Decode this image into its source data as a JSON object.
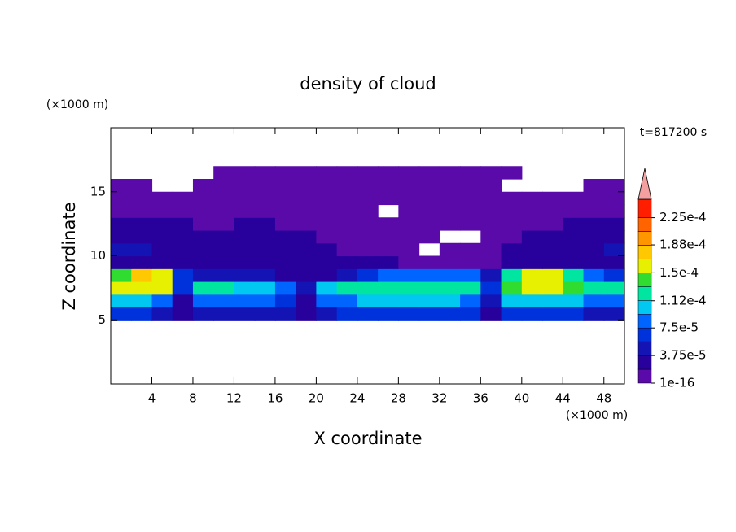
{
  "chart_data": {
    "type": "contour",
    "title": "density of cloud",
    "x_label": "X coordinate",
    "y_label": "Z coordinate",
    "x_unit": "(×1000 m)",
    "y_unit": "(×1000 m)",
    "annotation": "t=817200 s",
    "xlim": [
      0,
      50
    ],
    "ylim": [
      0,
      20
    ],
    "xticks": [
      4,
      8,
      12,
      16,
      20,
      24,
      28,
      32,
      36,
      40,
      44,
      48
    ],
    "yticks": [
      5,
      10,
      15
    ],
    "colorbar": {
      "clim": [
        1e-16,
        0.00025
      ],
      "levels": [
        1e-16,
        1.875e-05,
        3.75e-05,
        5.625e-05,
        7.5e-05,
        9.375e-05,
        0.0001125,
        0.00013125,
        0.00015,
        0.00016875,
        0.0001875,
        0.00020625,
        0.000225
      ],
      "colors": [
        "#5a0aa8",
        "#28009c",
        "#1414b4",
        "#0032dc",
        "#0064ff",
        "#00c8f0",
        "#00e6a0",
        "#30dc30",
        "#e6f000",
        "#ffc800",
        "#ff9600",
        "#ff6400",
        "#ff1e00"
      ],
      "over_color": "#f4a0a0",
      "ticks": [
        {
          "value": 1e-16,
          "label": "1e-16"
        },
        {
          "value": 3.75e-05,
          "label": "3.75e-5"
        },
        {
          "value": 7.5e-05,
          "label": "7.5e-5"
        },
        {
          "value": 0.000112,
          "label": "1.12e-4"
        },
        {
          "value": 0.00015,
          "label": "1.5e-4"
        },
        {
          "value": 0.000188,
          "label": "1.88e-4"
        },
        {
          "value": 0.000225,
          "label": "2.25e-4"
        }
      ]
    },
    "field": {
      "x": [
        1,
        3,
        5,
        7,
        9,
        11,
        13,
        15,
        17,
        19,
        21,
        23,
        25,
        27,
        29,
        31,
        33,
        35,
        37,
        39,
        41,
        43,
        45,
        47,
        49
      ],
      "z": [
        5.5,
        6.5,
        7.5,
        8.5,
        9.5,
        10.5,
        11.5,
        12.5,
        13.5,
        14.5,
        15.5,
        16.5
      ],
      "values": [
        [
          6e-05,
          6e-05,
          5e-05,
          2e-05,
          5e-05,
          5e-05,
          5e-05,
          5e-05,
          4e-05,
          2e-05,
          5e-05,
          6e-05,
          6e-05,
          6e-05,
          6e-05,
          6e-05,
          6e-05,
          6e-05,
          3e-05,
          6e-05,
          6e-05,
          6e-05,
          6e-05,
          5e-05,
          5e-05
        ],
        [
          0.0001,
          0.00011,
          9e-05,
          3e-05,
          8e-05,
          9e-05,
          9e-05,
          8e-05,
          6e-05,
          3e-05,
          8e-05,
          9e-05,
          0.0001,
          0.0001,
          0.0001,
          0.0001,
          0.0001,
          9e-05,
          4e-05,
          0.0001,
          0.00011,
          0.00011,
          0.0001,
          9e-05,
          9e-05
        ],
        [
          0.00015,
          0.00016,
          0.00015,
          6e-05,
          0.00012,
          0.00012,
          0.00011,
          0.00011,
          8e-05,
          4e-05,
          0.0001,
          0.00012,
          0.00013,
          0.00013,
          0.00012,
          0.00013,
          0.00013,
          0.00012,
          6e-05,
          0.00014,
          0.00016,
          0.00016,
          0.00014,
          0.00012,
          0.00012
        ],
        [
          0.00014,
          0.00017,
          0.00016,
          6e-05,
          4e-05,
          4e-05,
          4e-05,
          4e-05,
          3e-05,
          3e-05,
          3e-05,
          5e-05,
          6e-05,
          8e-05,
          8e-05,
          9e-05,
          9e-05,
          8e-05,
          4e-05,
          0.00012,
          0.00016,
          0.00016,
          0.00013,
          8e-05,
          6e-05
        ],
        [
          3e-05,
          3e-05,
          3e-05,
          2e-05,
          2e-05,
          2e-05,
          2e-05,
          2e-05,
          2e-05,
          2e-05,
          2e-05,
          2e-05,
          2e-05,
          2e-05,
          1e-05,
          1e-05,
          1e-05,
          1e-05,
          1e-05,
          2e-05,
          2e-05,
          2e-05,
          2e-05,
          2e-05,
          3e-05
        ],
        [
          4e-05,
          4e-05,
          3e-05,
          3e-05,
          3e-05,
          3e-05,
          3e-05,
          2e-05,
          2e-05,
          2e-05,
          2e-05,
          1e-05,
          1e-05,
          1e-05,
          1e-05,
          null,
          1e-05,
          1e-05,
          1e-05,
          2e-05,
          3e-05,
          3e-05,
          3e-05,
          3e-05,
          4e-05
        ],
        [
          3e-05,
          3e-05,
          3e-05,
          3e-05,
          3e-05,
          3e-05,
          3e-05,
          3e-05,
          2e-05,
          2e-05,
          1e-05,
          1e-05,
          1e-05,
          1e-05,
          1e-05,
          1e-05,
          null,
          null,
          1e-05,
          1e-05,
          2e-05,
          2e-05,
          2e-05,
          3e-05,
          3e-05
        ],
        [
          2e-05,
          2e-05,
          2e-05,
          2e-05,
          1e-05,
          1e-05,
          2e-05,
          2e-05,
          1e-05,
          1e-05,
          1e-05,
          1e-05,
          1e-05,
          1e-05,
          1e-05,
          1e-05,
          1e-05,
          1e-05,
          1e-05,
          1e-05,
          1e-05,
          1e-05,
          2e-05,
          2e-05,
          2e-05
        ],
        [
          1e-05,
          1e-05,
          1e-05,
          1e-05,
          1e-05,
          1e-05,
          1e-05,
          1e-05,
          1e-05,
          1e-05,
          1e-05,
          1e-05,
          1e-05,
          null,
          1e-05,
          1e-05,
          1e-05,
          1e-05,
          1e-05,
          1e-05,
          1e-05,
          1e-05,
          1e-05,
          1e-05,
          1e-05
        ],
        [
          1e-05,
          1e-05,
          5e-06,
          5e-06,
          5e-06,
          5e-06,
          5e-06,
          5e-06,
          5e-06,
          5e-06,
          5e-06,
          5e-06,
          5e-06,
          5e-06,
          5e-06,
          5e-06,
          5e-06,
          5e-06,
          5e-06,
          5e-06,
          5e-06,
          5e-06,
          5e-06,
          5e-06,
          1e-05
        ],
        [
          5e-06,
          5e-06,
          null,
          null,
          5e-06,
          5e-06,
          5e-06,
          5e-06,
          5e-06,
          5e-06,
          5e-06,
          5e-06,
          5e-06,
          5e-06,
          5e-06,
          5e-06,
          5e-06,
          5e-06,
          5e-06,
          null,
          null,
          null,
          null,
          5e-06,
          5e-06
        ],
        [
          null,
          null,
          null,
          null,
          null,
          5e-06,
          5e-06,
          5e-06,
          5e-06,
          5e-06,
          5e-06,
          5e-06,
          5e-06,
          5e-06,
          5e-06,
          5e-06,
          5e-06,
          5e-06,
          5e-06,
          5e-06,
          null,
          null,
          null,
          null,
          null
        ]
      ]
    }
  }
}
